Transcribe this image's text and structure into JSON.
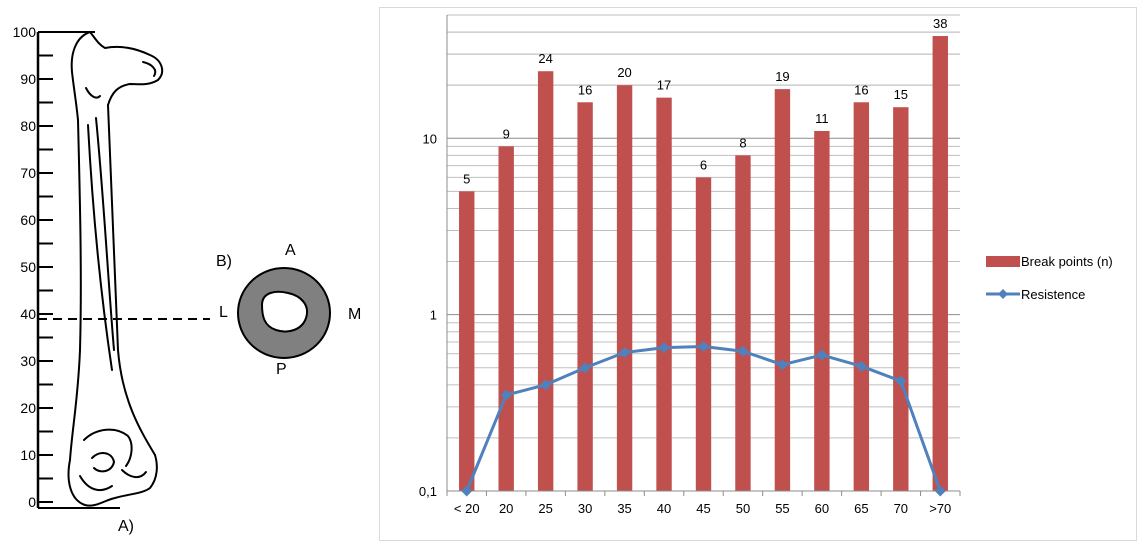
{
  "figure": {
    "ruler_ticks": [
      "100",
      "90",
      "80",
      "70",
      "60",
      "50",
      "40",
      "30",
      "20",
      "10",
      "0"
    ],
    "label_a": "A)",
    "label_b": "B)",
    "section_anterior": "A",
    "section_posterior": "P",
    "section_lateral": "L",
    "section_medial": "M",
    "bone_fill": "#808080"
  },
  "chart_data": {
    "type": "bar",
    "categories": [
      "< 20",
      "20",
      "25",
      "30",
      "35",
      "40",
      "45",
      "50",
      "55",
      "60",
      "65",
      "70",
      ">70"
    ],
    "y_scale": "log",
    "ylim": [
      0.1,
      50
    ],
    "y_ticks": [
      {
        "value": 0.1,
        "label": "0,1"
      },
      {
        "value": 1,
        "label": "1"
      },
      {
        "value": 10,
        "label": "10"
      }
    ],
    "grid": true,
    "legend_position": "right",
    "series": [
      {
        "name": "Break points (n)",
        "kind": "bar",
        "color": "#c0504d",
        "values": [
          5,
          9,
          24,
          16,
          20,
          17,
          6,
          8,
          19,
          11,
          16,
          15,
          38
        ],
        "data_labels": [
          "5",
          "9",
          "24",
          "16",
          "20",
          "17",
          "6",
          "8",
          "19",
          "11",
          "16",
          "15",
          "38"
        ]
      },
      {
        "name": "Resistence",
        "kind": "line",
        "marker": "diamond",
        "color": "#4f81bd",
        "values": [
          0.1,
          0.35,
          0.4,
          0.5,
          0.61,
          0.65,
          0.66,
          0.62,
          0.52,
          0.59,
          0.51,
          0.42,
          0.1
        ]
      }
    ]
  }
}
